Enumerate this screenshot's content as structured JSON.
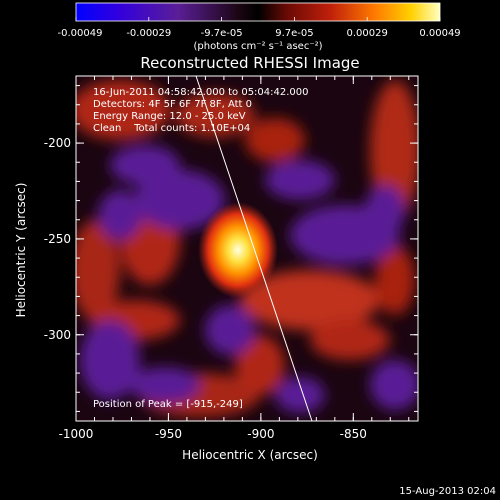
{
  "colorbar": {
    "tick_labels": [
      "-0.00049",
      "-0.00029",
      "-9.7e-05",
      "9.7e-05",
      "0.00029",
      "0.00049"
    ],
    "unit_label": "(photons cm⁻² s⁻¹ asec⁻²)"
  },
  "title": "Reconstructed RHESSI Image",
  "info": {
    "time_range": "16-Jun-2011 04:58:42.000 to 05:04:42.000",
    "detectors": "Detectors: 4F 5F 6F 7F 8F, Att 0",
    "energy": "Energy Range: 12.0 - 25.0 keV",
    "method": "Clean    Total counts: 1.10E+04"
  },
  "peak_text": "Position of Peak = [-915,-249]",
  "axes": {
    "x_label": "Heliocentric X (arcsec)",
    "y_label": "Heliocentric Y (arcsec)",
    "x_ticks": [
      "-1000",
      "-950",
      "-900",
      "-850"
    ],
    "y_ticks": [
      "-200",
      "-250",
      "-300"
    ],
    "x_range": [
      -1000,
      -815
    ],
    "y_range": [
      -345,
      -165
    ]
  },
  "footer_date": "15-Aug-2013 02:04",
  "colors": {
    "background": "#000000",
    "negative": "#5a1e96",
    "positive": "#b8281a",
    "peak": "#ffffa0"
  }
}
